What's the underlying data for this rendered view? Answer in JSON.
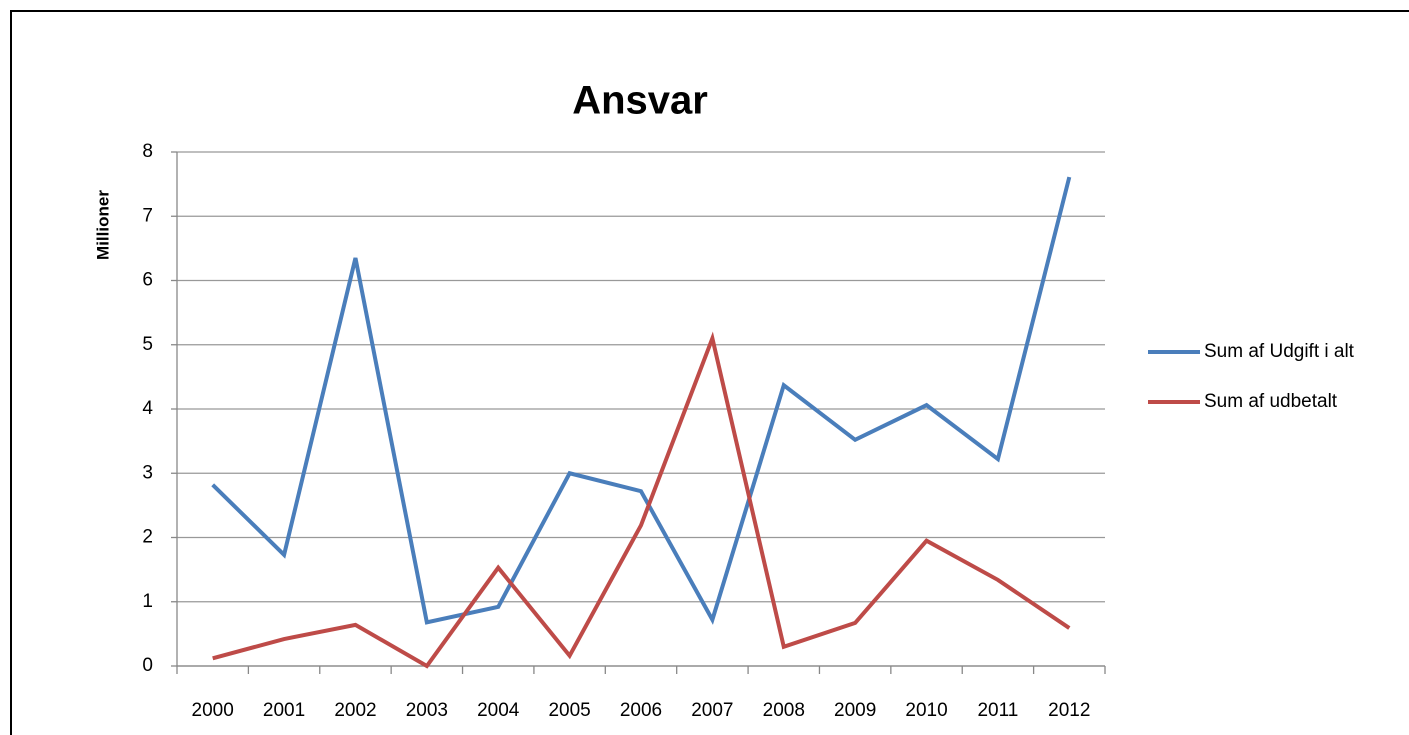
{
  "chart_data": {
    "type": "line",
    "title": "Ansvar",
    "y_label": "Millioner",
    "categories": [
      "2000",
      "2001",
      "2002",
      "2003",
      "2004",
      "2005",
      "2006",
      "2007",
      "2008",
      "2009",
      "2010",
      "2011",
      "2012"
    ],
    "series": [
      {
        "name": "Sum af Udgift i alt",
        "color": "#4a7ebb",
        "values": [
          2.82,
          1.73,
          6.35,
          0.68,
          0.92,
          3.0,
          2.72,
          0.72,
          4.37,
          3.52,
          4.06,
          3.22,
          7.61
        ]
      },
      {
        "name": "Sum af udbetalt",
        "color": "#be4b48",
        "values": [
          0.12,
          0.42,
          0.64,
          0,
          1.53,
          0.16,
          2.19,
          5.1,
          0.3,
          0.67,
          1.95,
          1.34,
          0.59
        ]
      }
    ],
    "ylim": [
      0,
      8
    ],
    "yticks": [
      0,
      1,
      2,
      3,
      4,
      5,
      6,
      7,
      8
    ],
    "grid": true,
    "legend": "right"
  }
}
